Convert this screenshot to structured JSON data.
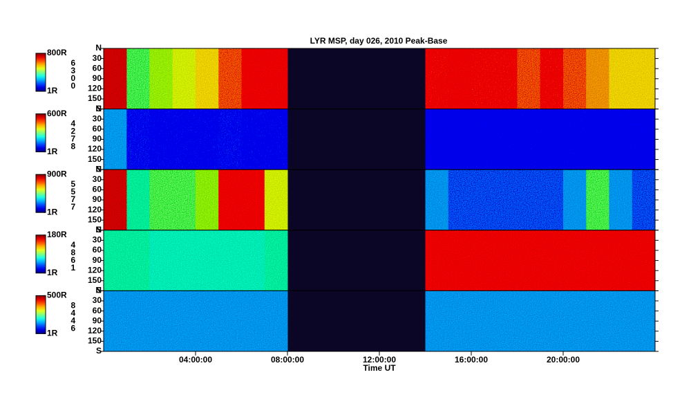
{
  "chart_data": {
    "type": "heatmap",
    "title": "LYR MSP, day 026, 2010 Peak-Base",
    "xlabel": "Time UT",
    "xlim": [
      0,
      24
    ],
    "xticks": [
      {
        "value": 4,
        "label": "04:00:00"
      },
      {
        "value": 8,
        "label": "08:00:00"
      },
      {
        "value": 12,
        "label": "12:00:00"
      },
      {
        "value": 16,
        "label": "16:00:00"
      },
      {
        "value": 20,
        "label": "20:00:00"
      }
    ],
    "ylim": [
      0,
      180
    ],
    "yticks": [
      {
        "value": 0,
        "label": "N"
      },
      30,
      60,
      90,
      120,
      150,
      {
        "value": 180,
        "label": "S"
      }
    ],
    "log_color_scale": true,
    "gap_color": "#0b0626",
    "bins": [
      0,
      1,
      2,
      3,
      4,
      5,
      6,
      7,
      8,
      9,
      10,
      11,
      12,
      13,
      14,
      15,
      16,
      17,
      18,
      19,
      20,
      21,
      22,
      23,
      24
    ],
    "panels": [
      {
        "name": "6300",
        "cticks": [
          {
            "value": 1,
            "label": "1R"
          },
          {
            "value": 800,
            "label": "800R"
          }
        ],
        "values": [
          410,
          28,
          40,
          55,
          77,
          150,
          290,
          290,
          null,
          null,
          null,
          null,
          null,
          null,
          210,
          290,
          210,
          210,
          150,
          210,
          150,
          110,
          77,
          77
        ]
      },
      {
        "name": "4278",
        "cticks": [
          {
            "value": 1,
            "label": "1R"
          },
          {
            "value": 600,
            "label": "600R"
          }
        ],
        "values": [
          7,
          4,
          3.6,
          3.6,
          3.6,
          4,
          3.6,
          3.6,
          null,
          null,
          null,
          null,
          null,
          null,
          2.6,
          2.6,
          2.6,
          2.6,
          2.6,
          2.6,
          3,
          2.6,
          2.6,
          2.6
        ]
      },
      {
        "name": "5577",
        "cticks": [
          {
            "value": 1,
            "label": "1R"
          },
          {
            "value": 900,
            "label": "900R"
          }
        ],
        "values": [
          460,
          21,
          30,
          30,
          40,
          325,
          325,
          59,
          null,
          null,
          null,
          null,
          null,
          null,
          7.7,
          5.5,
          5.5,
          5.5,
          5.5,
          5.5,
          7.7,
          30,
          7.7,
          5.5
        ]
      },
      {
        "name": "4861",
        "cticks": [
          {
            "value": 1,
            "label": "1R"
          },
          {
            "value": 180,
            "label": "180R"
          }
        ],
        "values": [
          10,
          10,
          9,
          9,
          9,
          9,
          9,
          10,
          null,
          null,
          null,
          null,
          null,
          null,
          83,
          83,
          83,
          83,
          83,
          83,
          83,
          83,
          83,
          83
        ]
      },
      {
        "name": "8446",
        "cticks": [
          {
            "value": 1,
            "label": "1R"
          },
          {
            "value": 500,
            "label": "500R"
          }
        ],
        "values": [
          6.5,
          6.5,
          6.5,
          6.5,
          6.5,
          6.5,
          6.5,
          6.5,
          null,
          null,
          null,
          null,
          null,
          null,
          6.5,
          6.5,
          6.5,
          6.5,
          6.5,
          6.5,
          6.5,
          6.5,
          6.5,
          6.5
        ]
      }
    ]
  }
}
